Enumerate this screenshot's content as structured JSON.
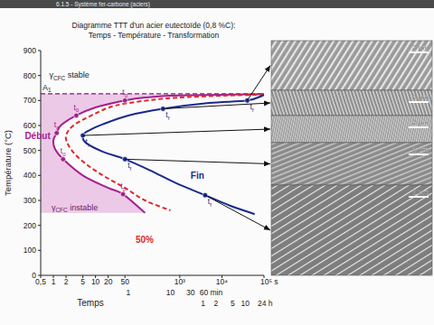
{
  "header": "6.1.5 - Système fer-carbone (aciers)",
  "chart_data": {
    "type": "line",
    "title": "Diagramme TTT d'un acier eutectoïde (0,8 %C):",
    "subtitle": "Temps - Température - Transformation",
    "x_label": "Temps",
    "y_label": "Température (°C)",
    "log": "x",
    "grid": false,
    "xlim": [
      0.5,
      100000
    ],
    "ylim": [
      0,
      900
    ],
    "xticks": [
      {
        "value": 0.5,
        "label": "0,5"
      },
      1,
      2,
      5,
      10,
      20,
      50,
      {
        "value": 1000,
        "label": "10³"
      },
      {
        "value": 10000,
        "label": "10⁴"
      },
      {
        "value": 100000,
        "label": "10⁵ s"
      }
    ],
    "x2ticks": [
      {
        "value": 60,
        "label": "1"
      },
      {
        "value": 600,
        "label": "10"
      },
      {
        "value": 1800,
        "label": "30"
      },
      {
        "value": 3600,
        "label": "60 min"
      }
    ],
    "x3ticks": [
      {
        "value": 3600,
        "label": "1"
      },
      {
        "value": 7200,
        "label": "2"
      },
      {
        "value": 18000,
        "label": "5"
      },
      {
        "value": 36000,
        "label": "10"
      },
      {
        "value": 86400,
        "label": "24 h"
      }
    ],
    "yticks": [
      0,
      100,
      200,
      300,
      400,
      500,
      600,
      700,
      800,
      900
    ],
    "series": [
      {
        "name": "Début",
        "type": "line",
        "color": "#a3218d",
        "line_style": "solid",
        "label_x": 0.85,
        "label_y": 545,
        "x": [
          100000,
          1000,
          150,
          50,
          10,
          3.5,
          1.5,
          1.2,
          1.0,
          1.1,
          1.7,
          5,
          20,
          45,
          150
        ],
        "values": [
          726,
          720,
          712,
          700,
          672,
          640,
          600,
          570,
          540,
          505,
          465,
          400,
          350,
          325,
          250
        ]
      },
      {
        "name": "50%",
        "type": "line",
        "color": "#e0262a",
        "line_style": "dashed",
        "label_x": 240,
        "label_y": 130,
        "x": [
          100000,
          3000,
          300,
          30,
          8,
          3,
          2,
          2.3,
          4,
          12,
          50,
          150,
          600
        ],
        "values": [
          724,
          716,
          705,
          680,
          640,
          600,
          560,
          520,
          470,
          410,
          350,
          300,
          260
        ]
      },
      {
        "name": "Fin",
        "type": "line",
        "color": "#1b2a8a",
        "line_style": "solid",
        "label_x": 3800,
        "label_y": 385,
        "x": [
          100000,
          40000,
          5000,
          400,
          60,
          15,
          7,
          5,
          6,
          15,
          50,
          200,
          800,
          4000,
          15000,
          60000
        ],
        "values": [
          722,
          700,
          690,
          667,
          640,
          605,
          580,
          560,
          530,
          495,
          465,
          420,
          370,
          321,
          280,
          245
        ]
      },
      {
        "type": "scatter",
        "color": "#a3218d",
        "marker": "circle",
        "x": [
          50,
          3.5,
          1.2,
          1.7,
          45
        ],
        "values": [
          700,
          640,
          570,
          465,
          325
        ],
        "labels": [
          [
            "t",
            "0"
          ],
          [
            "t",
            "0"
          ],
          [
            "t",
            "0"
          ],
          [
            "t",
            "0"
          ],
          [
            "t",
            "0"
          ]
        ]
      },
      {
        "type": "scatter",
        "color": "#1b2a8a",
        "marker": "circle",
        "x": [
          40000,
          400,
          5,
          50,
          4000
        ],
        "values": [
          700,
          667,
          560,
          465,
          321
        ],
        "labels": [
          [
            "t",
            "f"
          ],
          [
            "t",
            "f"
          ],
          [
            "t",
            "f"
          ],
          [
            "t",
            "f"
          ],
          [
            "t",
            "f"
          ]
        ]
      }
    ],
    "reference_lines": [
      {
        "y": 727,
        "label": [
          "A",
          "1"
        ],
        "line_style": "dashed",
        "color": "#7b2070"
      }
    ],
    "regions": [
      {
        "label": [
          "γ",
          "CFC",
          " instable"
        ],
        "color": "#ecc9e6",
        "ylim": [
          250,
          727
        ],
        "label_x": 0.9,
        "label_y": 262
      }
    ],
    "annotations": [
      {
        "text": [
          "γ",
          "CFC",
          " stable"
        ],
        "x": 0.8,
        "y": 790
      }
    ],
    "micrographs": [
      {
        "scale": "2 µm"
      },
      {
        "scale": "2 µm"
      },
      {
        "scale": "2 µm"
      },
      {
        "scale": "2 µm"
      },
      {
        "scale": "2 µm"
      }
    ]
  }
}
